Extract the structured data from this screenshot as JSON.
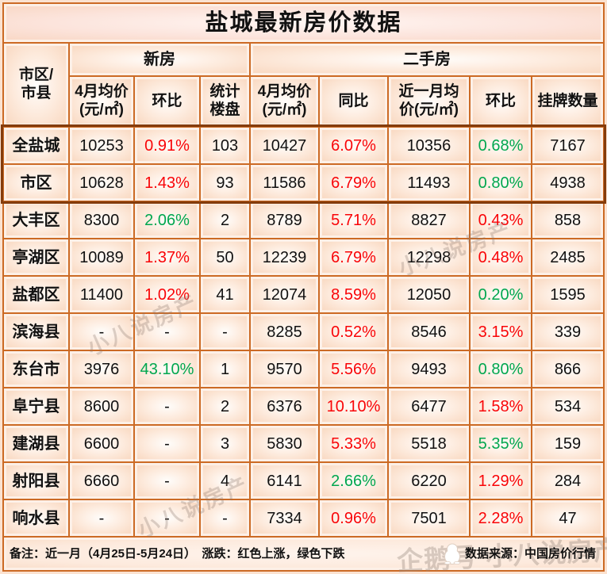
{
  "title": "盐城最新房价数据",
  "header": {
    "region": "市区/\n市县",
    "group_new": "新房",
    "group_second": "二手房",
    "sub": [
      "4月均价\n(元/㎡)",
      "环比",
      "统计\n楼盘",
      "4月均价\n(元/㎡)",
      "同比",
      "近一月均\n价(元/㎡)",
      "环比",
      "挂牌数量"
    ]
  },
  "chart_data": {
    "type": "table",
    "title": "盐城最新房价数据",
    "column_groups": [
      {
        "label": "新房",
        "columns": [
          "4月均价(元/㎡)",
          "环比",
          "统计楼盘"
        ]
      },
      {
        "label": "二手房",
        "columns": [
          "4月均价(元/㎡)",
          "同比",
          "近一月均价(元/㎡)",
          "环比",
          "挂牌数量"
        ]
      }
    ],
    "columns": [
      "市区/市县",
      "新房4月均价(元/㎡)",
      "新房环比",
      "统计楼盘",
      "二手房4月均价(元/㎡)",
      "同比",
      "近一月均价(元/㎡)",
      "二手房环比",
      "挂牌数量"
    ],
    "rows": [
      {
        "label": "全盐城",
        "highlight": true,
        "cells": [
          {
            "t": "10253"
          },
          {
            "t": "0.91%",
            "c": "red"
          },
          {
            "t": "103"
          },
          {
            "t": "10427"
          },
          {
            "t": "6.07%",
            "c": "red"
          },
          {
            "t": "10356"
          },
          {
            "t": "0.68%",
            "c": "green"
          },
          {
            "t": "7167"
          }
        ]
      },
      {
        "label": "市区",
        "highlight": true,
        "cells": [
          {
            "t": "10628"
          },
          {
            "t": "1.43%",
            "c": "red"
          },
          {
            "t": "93"
          },
          {
            "t": "11586"
          },
          {
            "t": "6.79%",
            "c": "red"
          },
          {
            "t": "11493"
          },
          {
            "t": "0.80%",
            "c": "green"
          },
          {
            "t": "4938"
          }
        ]
      },
      {
        "label": "大丰区",
        "highlight": false,
        "cells": [
          {
            "t": "8300"
          },
          {
            "t": "2.06%",
            "c": "green"
          },
          {
            "t": "2"
          },
          {
            "t": "8789"
          },
          {
            "t": "5.71%",
            "c": "red"
          },
          {
            "t": "8827"
          },
          {
            "t": "0.43%",
            "c": "red"
          },
          {
            "t": "858"
          }
        ]
      },
      {
        "label": "亭湖区",
        "highlight": false,
        "cells": [
          {
            "t": "10089"
          },
          {
            "t": "1.37%",
            "c": "red"
          },
          {
            "t": "50"
          },
          {
            "t": "12239"
          },
          {
            "t": "6.79%",
            "c": "red"
          },
          {
            "t": "12298"
          },
          {
            "t": "0.48%",
            "c": "red"
          },
          {
            "t": "2485"
          }
        ]
      },
      {
        "label": "盐都区",
        "highlight": false,
        "cells": [
          {
            "t": "11400"
          },
          {
            "t": "1.02%",
            "c": "red"
          },
          {
            "t": "41"
          },
          {
            "t": "12074"
          },
          {
            "t": "8.59%",
            "c": "red"
          },
          {
            "t": "12050"
          },
          {
            "t": "0.20%",
            "c": "green"
          },
          {
            "t": "1595"
          }
        ]
      },
      {
        "label": "滨海县",
        "highlight": false,
        "cells": [
          {
            "t": "-"
          },
          {
            "t": "-"
          },
          {
            "t": "-"
          },
          {
            "t": "8285"
          },
          {
            "t": "0.52%",
            "c": "red"
          },
          {
            "t": "8546"
          },
          {
            "t": "3.15%",
            "c": "red"
          },
          {
            "t": "339"
          }
        ]
      },
      {
        "label": "东台市",
        "highlight": false,
        "cells": [
          {
            "t": "3976"
          },
          {
            "t": "43.10%",
            "c": "green"
          },
          {
            "t": "1"
          },
          {
            "t": "9570"
          },
          {
            "t": "5.56%",
            "c": "red"
          },
          {
            "t": "9493"
          },
          {
            "t": "0.80%",
            "c": "green"
          },
          {
            "t": "866"
          }
        ]
      },
      {
        "label": "阜宁县",
        "highlight": false,
        "cells": [
          {
            "t": "8600"
          },
          {
            "t": "-"
          },
          {
            "t": "2"
          },
          {
            "t": "6376"
          },
          {
            "t": "10.10%",
            "c": "red"
          },
          {
            "t": "6477"
          },
          {
            "t": "1.58%",
            "c": "red"
          },
          {
            "t": "534"
          }
        ]
      },
      {
        "label": "建湖县",
        "highlight": false,
        "cells": [
          {
            "t": "6600"
          },
          {
            "t": "-"
          },
          {
            "t": "3"
          },
          {
            "t": "5830"
          },
          {
            "t": "5.33%",
            "c": "red"
          },
          {
            "t": "5518"
          },
          {
            "t": "5.35%",
            "c": "green"
          },
          {
            "t": "159"
          }
        ]
      },
      {
        "label": "射阳县",
        "highlight": false,
        "cells": [
          {
            "t": "6660"
          },
          {
            "t": "-"
          },
          {
            "t": "4"
          },
          {
            "t": "6141"
          },
          {
            "t": "2.66%",
            "c": "green"
          },
          {
            "t": "6220"
          },
          {
            "t": "1.29%",
            "c": "red"
          },
          {
            "t": "284"
          }
        ]
      },
      {
        "label": "响水县",
        "highlight": false,
        "cells": [
          {
            "t": "-"
          },
          {
            "t": "-"
          },
          {
            "t": "-"
          },
          {
            "t": "7334"
          },
          {
            "t": "0.96%",
            "c": "red"
          },
          {
            "t": "7501"
          },
          {
            "t": "2.28%",
            "c": "red"
          },
          {
            "t": "47"
          }
        ]
      }
    ],
    "legend": "涨跌：红色上涨，绿色下跌",
    "colors": {
      "up_red": "#f90508",
      "down_green": "#00a74f",
      "grid_line": "#cc6a24",
      "highlight_border": "#843c0c"
    }
  },
  "footer": {
    "note": "备注：近一月（4月25日-5月24日）　涨跌：红色上涨，绿色下跌",
    "source": "数据来源：中国房价行情"
  },
  "watermarks": {
    "w1": "小八说房产",
    "w2": "小八说房产",
    "w3": "小八说房产",
    "big": "企鹅号 小八说房产"
  }
}
